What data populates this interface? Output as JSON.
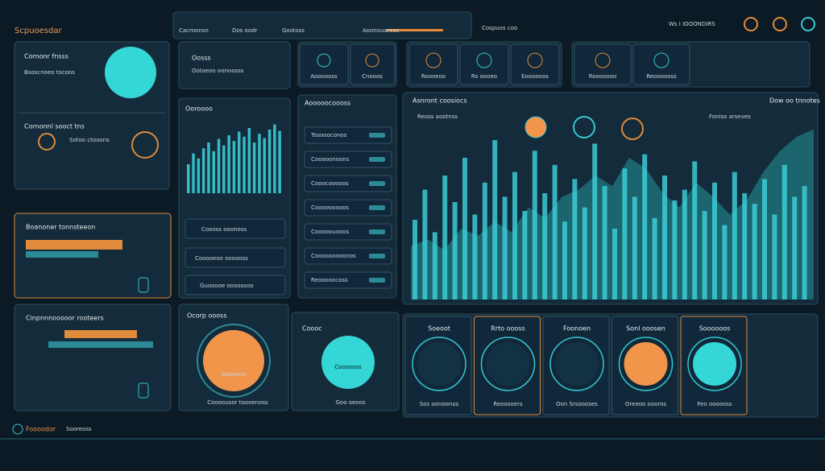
{
  "header": {
    "title": "Scpuoesdar",
    "tabs": [
      "Cacroonsn",
      "Dos oodr",
      "Gxotoss",
      "Aoonouaress"
    ],
    "section": "Cospuos coo",
    "right": "Ws I IOOONDIRS"
  },
  "left": {
    "panel1": {
      "title": "Cornonr fnsss",
      "line": "Bsoscnoeo tocoos"
    },
    "panel2": {
      "title": "Cornonnl sooct tns",
      "line": "Sotoo ctooons"
    },
    "panel3": {
      "title": "Boanoner tonnsteeon"
    },
    "panel4": {
      "title": "Cinpnnnooooor rooteers"
    }
  },
  "middle": {
    "top": {
      "title": "Oosss",
      "line": "Ootoeoo oonoosss"
    },
    "chart": {
      "title": "Ooroooo",
      "bars": [
        40,
        55,
        48,
        62,
        70,
        58,
        75,
        66,
        80,
        72,
        85,
        78,
        90,
        70,
        82,
        76,
        88,
        95,
        86
      ],
      "rows": [
        "Coooss ooonoss",
        "Cooooeoo oooooss",
        "Guooooe oooossoo"
      ]
    },
    "gauge": {
      "title": "Ocorp oooss",
      "inner": "Goooooo",
      "caption": "Coooousor toooenoss"
    },
    "list": {
      "title": "Aooooocoooss",
      "rows": [
        "Tosoooconos",
        "Cooooonoons",
        "Cooocooooos",
        "Cooooooooos",
        "Cooooouooos",
        "Cooooooooonos",
        "Reooooocoss"
      ]
    },
    "gauge2": {
      "title": "Coooc",
      "inner": "Coooooss",
      "caption": "Goo oeoos"
    }
  },
  "icons": {
    "left": [
      "Aoooooss",
      "Cnooos"
    ],
    "mid": [
      "Roooeoo",
      "Rs oooeo",
      "Eoooooos"
    ],
    "right": [
      "Rooooooo",
      "Reoooooss"
    ]
  },
  "big": {
    "title": "Asnront coosiocs",
    "right": "Dow oo tnnotes",
    "legend": "Reoss aootnss",
    "note": "Foniso arseves",
    "bars": [
      45,
      62,
      38,
      70,
      55,
      80,
      48,
      66,
      90,
      58,
      72,
      50,
      84,
      60,
      76,
      44,
      68,
      52,
      88,
      64,
      40,
      74,
      58,
      82,
      46,
      70,
      56,
      62,
      78,
      50,
      66,
      42,
      72,
      60,
      54,
      68,
      48,
      76,
      58,
      64
    ],
    "area": [
      30,
      34,
      28,
      40,
      36,
      44,
      38,
      52,
      46,
      58,
      62,
      70,
      64,
      80,
      74,
      60,
      52,
      66,
      58,
      48,
      56,
      72,
      84,
      92,
      96
    ]
  },
  "cells": [
    {
      "title": "Soeoot",
      "caption": "Sos oonoonos"
    },
    {
      "title": "Rrto oooss",
      "caption": "Reoosoers"
    },
    {
      "title": "Foonoen",
      "caption": "Oon Srsoooses"
    },
    {
      "title": "Sonl ooosen",
      "caption": "Oreeoo oooros"
    },
    {
      "title": "Soooooos",
      "caption": "Feo oooooss"
    }
  ],
  "footer": {
    "brand": "Foooodor",
    "tag": "Sooreoss"
  }
}
